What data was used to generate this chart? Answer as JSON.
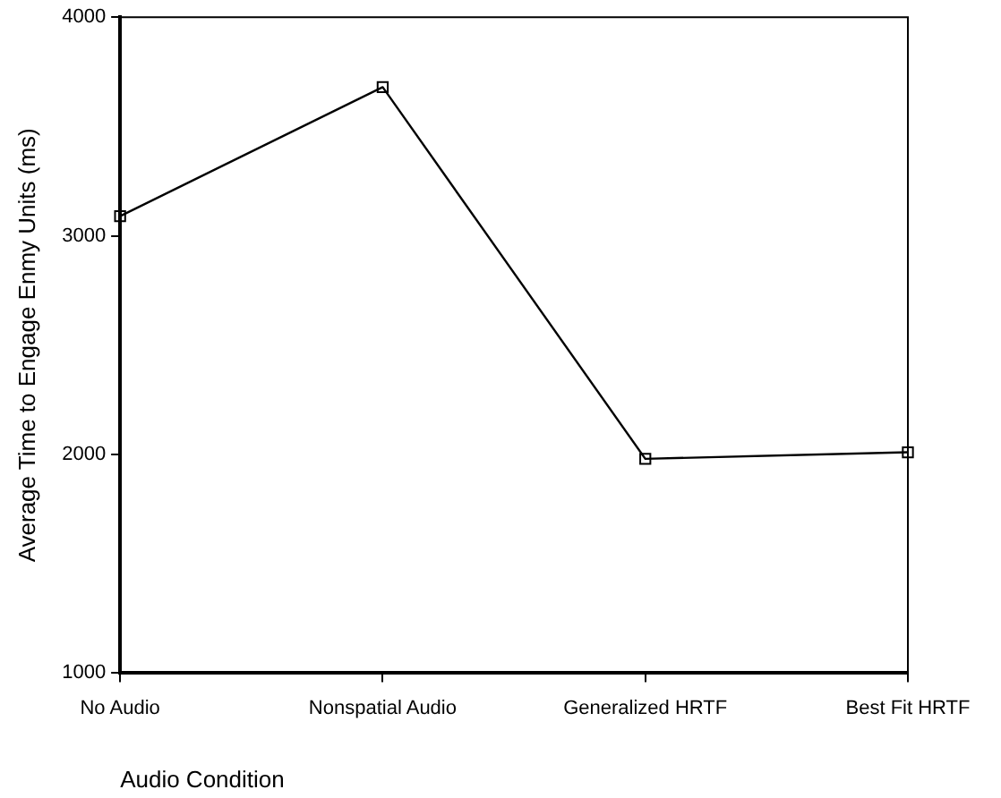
{
  "chart_data": {
    "type": "line",
    "xlabel": "Audio Condition",
    "ylabel": "Average Time to Engage Enmy Units (ms)",
    "categories": [
      "No Audio",
      "Nonspatial Audio",
      "Generalized HRTF",
      "Best Fit HRTF"
    ],
    "series": [
      {
        "color": "#000000",
        "values": [
          3090,
          3680,
          1980,
          2010
        ]
      }
    ],
    "ylim": [
      1000,
      4000
    ],
    "yticks": [
      1000,
      2000,
      3000,
      4000
    ],
    "grid": false,
    "legend": false,
    "marker": "square",
    "line_style": "solid"
  }
}
